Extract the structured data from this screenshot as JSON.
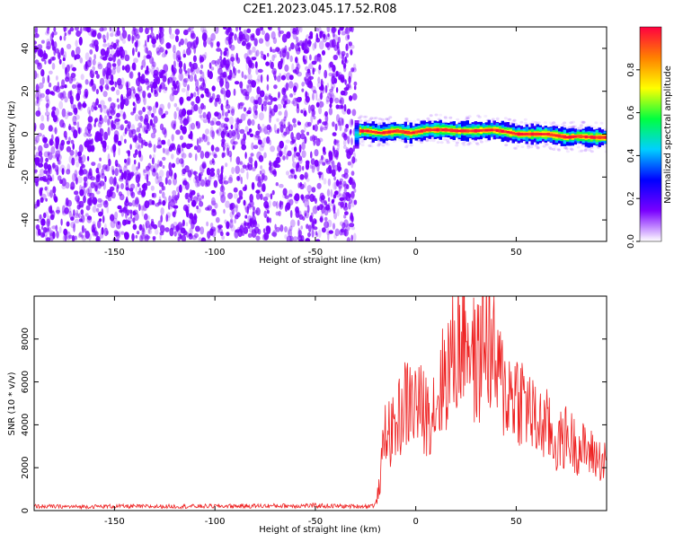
{
  "page_title": "C2E1.2023.045.17.52.R08",
  "colorbar": {
    "label": "Normalized spectral amplitude",
    "ticks": [
      "0.0",
      "0.2",
      "0.4",
      "0.6",
      "0.8"
    ],
    "tick_values": [
      0.0,
      0.2,
      0.4,
      0.6,
      0.8
    ],
    "range": [
      0,
      1
    ],
    "colors": [
      "#ffffff",
      "#7a00ff",
      "#0000ff",
      "#00d0ff",
      "#00ff40",
      "#ffff00",
      "#ff8000",
      "#ff0040"
    ]
  },
  "chart_data": [
    {
      "type": "heatmap",
      "title": "C2E1.2023.045.17.52.R08",
      "xlabel": "Height of straight line (km)",
      "ylabel": "Frequency (Hz)",
      "xlim": [
        -190,
        95
      ],
      "ylim": [
        -50,
        50
      ],
      "x_ticks": [
        -150,
        -100,
        -50,
        0,
        50
      ],
      "x_tick_labels": [
        "-150",
        "-100",
        "-50",
        "0",
        "50"
      ],
      "y_ticks": [
        -40,
        -20,
        0,
        20,
        40
      ],
      "y_tick_labels": [
        "-40",
        "-20",
        "0",
        "20",
        "40"
      ],
      "regions": [
        {
          "x": [
            -190,
            -30
          ],
          "y": [
            -50,
            50
          ],
          "amplitude_range": [
            0.0,
            0.15
          ],
          "note": "diffuse low-amplitude noise"
        },
        {
          "x": [
            -30,
            95
          ],
          "y": [
            -4,
            4
          ],
          "amplitude_range": [
            0.3,
            1.0
          ],
          "center_frequency": 0
        }
      ],
      "band_peaks": [
        {
          "x": -25,
          "y": 1.5
        },
        {
          "x": -18,
          "y": 0.5
        },
        {
          "x": -10,
          "y": 1.5
        },
        {
          "x": -3,
          "y": 0.5
        },
        {
          "x": 5,
          "y": 2
        },
        {
          "x": 14,
          "y": 2
        },
        {
          "x": 20,
          "y": 1.5
        },
        {
          "x": 28,
          "y": 1.5
        },
        {
          "x": 38,
          "y": 2
        },
        {
          "x": 45,
          "y": 1
        },
        {
          "x": 50,
          "y": 0
        },
        {
          "x": 58,
          "y": 0
        },
        {
          "x": 65,
          "y": 0
        },
        {
          "x": 75,
          "y": -1.5
        },
        {
          "x": 80,
          "y": -1
        },
        {
          "x": 88,
          "y": -1.5
        }
      ],
      "grid": false
    },
    {
      "type": "line",
      "xlabel": "Height of straight line (km)",
      "ylabel": "SNR (10 * v/v)",
      "xlim": [
        -190,
        95
      ],
      "ylim": [
        0,
        10000
      ],
      "x_ticks": [
        -150,
        -100,
        -50,
        0,
        50
      ],
      "x_tick_labels": [
        "-150",
        "-100",
        "-50",
        "0",
        "50"
      ],
      "y_ticks": [
        0,
        2000,
        4000,
        6000,
        8000
      ],
      "y_tick_labels": [
        "0",
        "2000",
        "4000",
        "6000",
        "8000"
      ],
      "line_color": "#ee2222",
      "grid": false,
      "x": [
        -190,
        -170,
        -150,
        -130,
        -110,
        -90,
        -70,
        -50,
        -35,
        -25,
        -20,
        -18,
        -15,
        -12,
        -10,
        -5,
        0,
        5,
        10,
        15,
        20,
        25,
        30,
        35,
        40,
        45,
        50,
        55,
        60,
        65,
        70,
        75,
        80,
        85,
        90,
        95
      ],
      "y": [
        200,
        180,
        200,
        190,
        200,
        210,
        220,
        230,
        200,
        200,
        260,
        1200,
        4000,
        3500,
        4000,
        5000,
        5000,
        4500,
        5000,
        6500,
        7500,
        8800,
        6500,
        8500,
        6500,
        5500,
        5500,
        5000,
        4000,
        4000,
        3000,
        3500,
        3000,
        2800,
        2500,
        2200
      ]
    }
  ]
}
